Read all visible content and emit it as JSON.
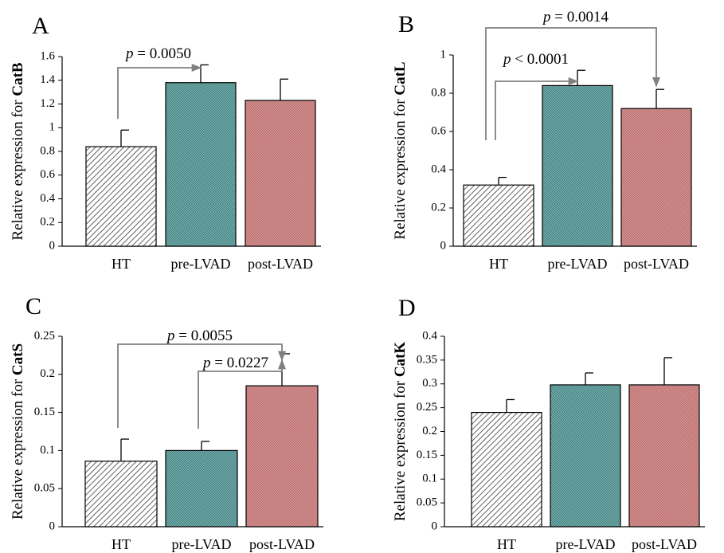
{
  "colors": {
    "HT": "#bdbdbd",
    "pre-LVAD": "#5f9ea0",
    "post-LVAD": "#c97b7b",
    "bracket": "#808080"
  },
  "chart_data": [
    {
      "type": "bar",
      "panel": "A",
      "categories": [
        "HT",
        "pre-LVAD",
        "post-LVAD"
      ],
      "values": [
        0.84,
        1.38,
        1.23
      ],
      "errors": [
        0.14,
        0.15,
        0.18
      ],
      "ylabel_prefix": "Relative expression for ",
      "ylabel_bold": "CatB",
      "ylim": [
        0,
        1.6
      ],
      "yticks": [
        0,
        0.2,
        0.4,
        0.6,
        0.8,
        1,
        1.2,
        1.4,
        1.6
      ],
      "ytick_labels": [
        "0",
        "0.2",
        "0.4",
        "0.6",
        "0.8",
        "1",
        "1.2",
        "1.4",
        "1.6"
      ],
      "comparisons": [
        {
          "from": "HT",
          "to": "pre-LVAD",
          "label_p": "p",
          "label_rest": " = 0.0050"
        }
      ]
    },
    {
      "type": "bar",
      "panel": "B",
      "categories": [
        "HT",
        "pre-LVAD",
        "post-LVAD"
      ],
      "values": [
        0.32,
        0.84,
        0.72
      ],
      "errors": [
        0.04,
        0.08,
        0.1
      ],
      "ylabel_prefix": "Relative expression for ",
      "ylabel_bold": "CatL",
      "ylim": [
        0,
        1
      ],
      "yticks": [
        0,
        0.2,
        0.4,
        0.6,
        0.8,
        1
      ],
      "ytick_labels": [
        "0",
        "0.2",
        "0.4",
        "0.6",
        "0.8",
        "1"
      ],
      "comparisons": [
        {
          "from": "HT",
          "to": "pre-LVAD",
          "label_p": "p",
          "label_rest": " < 0.0001"
        },
        {
          "from": "HT",
          "to": "post-LVAD",
          "label_p": "p",
          "label_rest": " = 0.0014"
        }
      ]
    },
    {
      "type": "bar",
      "panel": "C",
      "categories": [
        "HT",
        "pre-LVAD",
        "post-LVAD"
      ],
      "values": [
        0.086,
        0.1,
        0.185
      ],
      "errors": [
        0.029,
        0.012,
        0.042
      ],
      "ylabel_prefix": "Relative expression for ",
      "ylabel_bold": "CatS",
      "ylim": [
        0,
        0.25
      ],
      "yticks": [
        0,
        0.05,
        0.1,
        0.15,
        0.2,
        0.25
      ],
      "ytick_labels": [
        "0",
        "0.05",
        "0.1",
        "0.15",
        "0.2",
        "0.25"
      ],
      "comparisons": [
        {
          "from": "HT",
          "to": "post-LVAD",
          "label_p": "p",
          "label_rest": " = 0.0055"
        },
        {
          "from": "pre-LVAD",
          "to": "post-LVAD",
          "label_p": "p",
          "label_rest": " = 0.0227"
        }
      ]
    },
    {
      "type": "bar",
      "panel": "D",
      "categories": [
        "HT",
        "pre-LVAD",
        "post-LVAD"
      ],
      "values": [
        0.24,
        0.298,
        0.298
      ],
      "errors": [
        0.027,
        0.025,
        0.057
      ],
      "ylabel_prefix": "Relative expression for ",
      "ylabel_bold": "CatK",
      "ylim": [
        0,
        0.4
      ],
      "yticks": [
        0,
        0.05,
        0.1,
        0.15,
        0.2,
        0.25,
        0.3,
        0.35,
        0.4
      ],
      "ytick_labels": [
        "0",
        "0.05",
        "0.1",
        "0.15",
        "0.2",
        "0.25",
        "0.3",
        "0.35",
        "0.4"
      ],
      "comparisons": []
    }
  ]
}
